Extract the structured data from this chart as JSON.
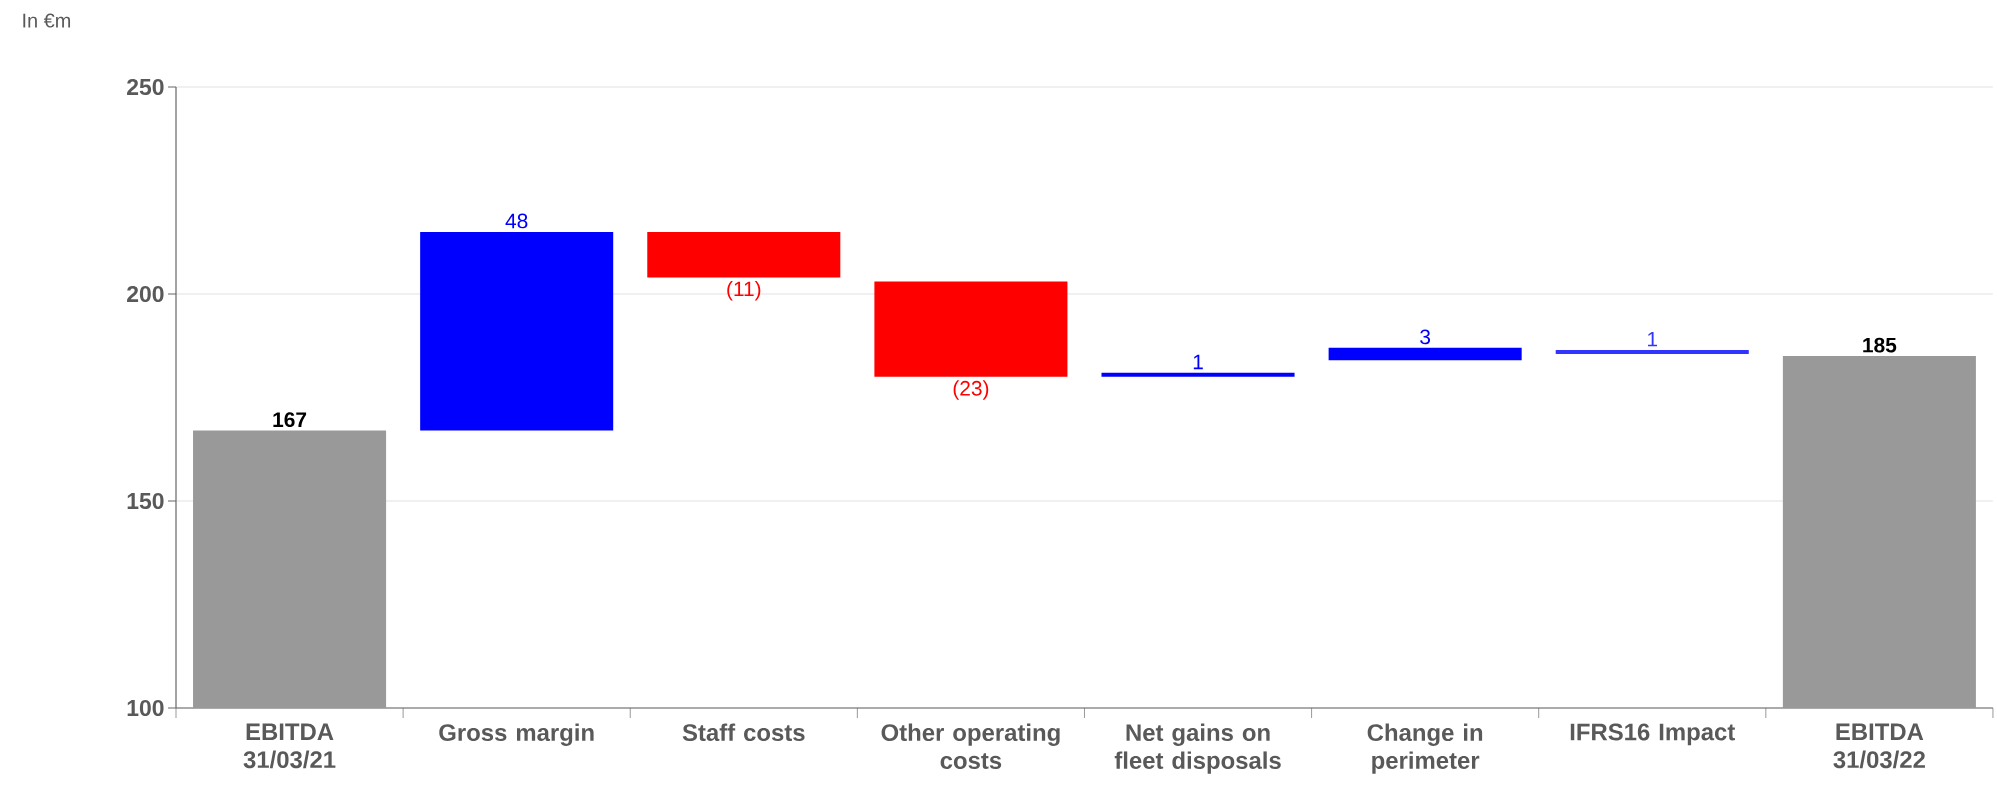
{
  "chart_data": {
    "type": "bar",
    "ylabel": "In €m",
    "categories": [
      "EBITDA 31/03/21",
      "Gross margin",
      "Staff costs",
      "Other operating costs",
      "Net gains on fleet disposals",
      "Change in perimeter",
      "IFRS16 Impact",
      "EBITDA 31/03/22"
    ],
    "values": [
      167,
      48,
      -11,
      -23,
      1,
      3,
      1,
      185
    ],
    "base": [
      null,
      167,
      215,
      203,
      180,
      184,
      185.5,
      null
    ],
    "colors": [
      "#999999",
      "#0000ff",
      "#ff0000",
      "#ff0000",
      "#0000ff",
      "#0000ff",
      "#3333ff",
      "#999999"
    ],
    "value_labels": [
      "167",
      "48",
      "(11)",
      "(23)",
      "1",
      "3",
      "1",
      "185"
    ],
    "ylim": [
      100,
      250
    ],
    "yticks": [
      100,
      150,
      200,
      250
    ],
    "grid": "y"
  }
}
